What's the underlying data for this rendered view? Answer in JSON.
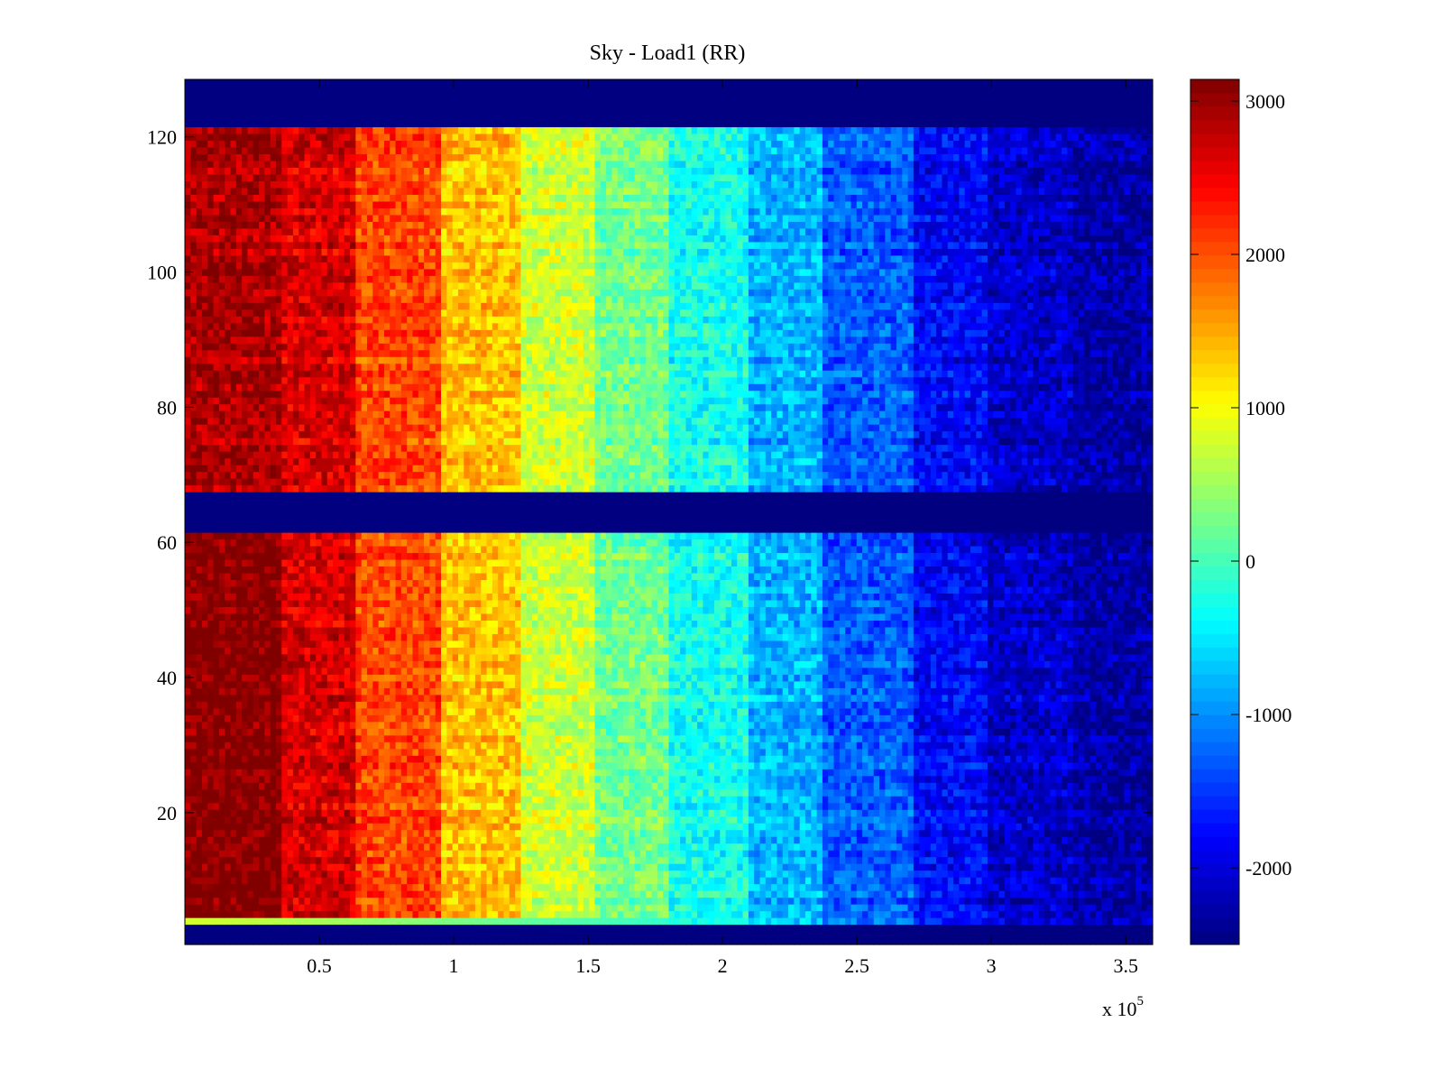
{
  "chart_data": {
    "type": "heatmap",
    "title": "Sky - Load1 (RR)",
    "xlabel": "",
    "ylabel": "",
    "x_multiplier_label": "x 10",
    "x_multiplier_exponent": "5",
    "xlim": [
      0,
      360000
    ],
    "ylim": [
      0.5,
      128.5
    ],
    "clim": [
      -2500,
      3141
    ],
    "colormap": "jet",
    "xticks": [
      50000,
      100000,
      150000,
      200000,
      250000,
      300000,
      350000
    ],
    "xtick_labels": [
      "0.5",
      "1",
      "1.5",
      "2",
      "2.5",
      "3",
      "3.5"
    ],
    "yticks": [
      20,
      40,
      60,
      80,
      100,
      120
    ],
    "ytick_labels": [
      "20",
      "40",
      "60",
      "80",
      "100",
      "120"
    ],
    "colorbar_ticks": [
      3000,
      2000,
      1000,
      0,
      -1000,
      -2000
    ],
    "colorbar_tick_labels": [
      "3000",
      "2000",
      "1000",
      "0",
      "-1000",
      "-2000"
    ],
    "rows": 128,
    "empty_row_ranges": [
      [
        1,
        3
      ],
      [
        62,
        67
      ],
      [
        122,
        128
      ]
    ],
    "empty_value": -2500,
    "x_bands": [
      {
        "x_start": 0,
        "x_end": 35000,
        "mean": 3141,
        "mean_upper_half": 2900
      },
      {
        "x_start": 35000,
        "x_end": 63000,
        "mean": 2650
      },
      {
        "x_start": 63000,
        "x_end": 95000,
        "mean": 2050
      },
      {
        "x_start": 95000,
        "x_end": 124000,
        "mean": 1350
      },
      {
        "x_start": 124000,
        "x_end": 152000,
        "mean": 750
      },
      {
        "x_start": 152000,
        "x_end": 181000,
        "mean": 250
      },
      {
        "x_start": 181000,
        "x_end": 209000,
        "mean": -300
      },
      {
        "x_start": 209000,
        "x_end": 237000,
        "mean": -800
      },
      {
        "x_start": 237000,
        "x_end": 271000,
        "mean": -1300
      },
      {
        "x_start": 271000,
        "x_end": 299000,
        "mean": -1800
      },
      {
        "x_start": 299000,
        "x_end": 330000,
        "mean": -2100
      },
      {
        "x_start": 330000,
        "x_end": 360000,
        "mean": -2300
      }
    ],
    "noise_amplitude": 350
  }
}
